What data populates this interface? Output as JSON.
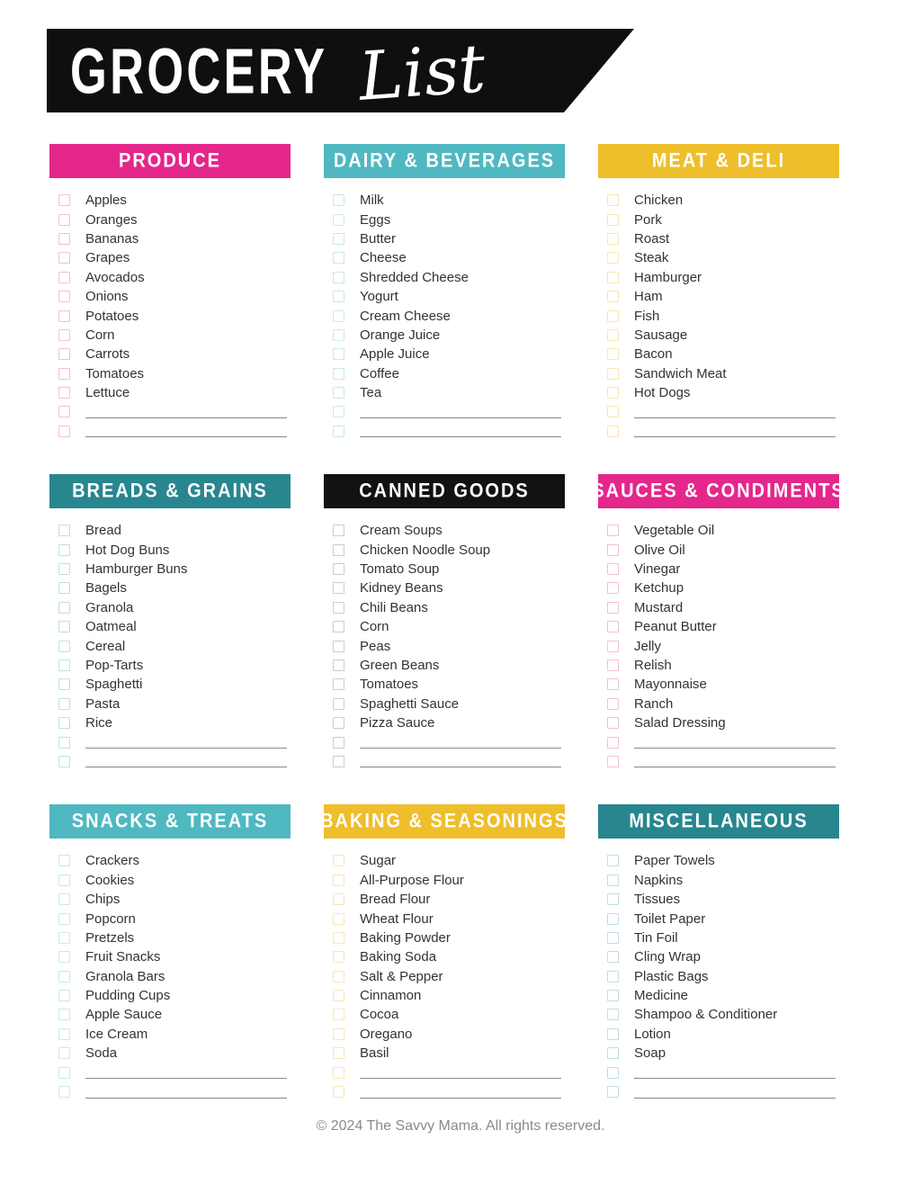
{
  "header": {
    "title_main": "GROCERY",
    "title_script": "List"
  },
  "footer": {
    "text": "© 2024 The Savvy Mama. All rights reserved."
  },
  "themes": {
    "pink": {
      "header_bg": "#E5268B",
      "header_text": "#FFFFFF",
      "checkbox_border": "#F5BEDC"
    },
    "teal": {
      "header_bg": "#4FB8C1",
      "header_text": "#FFFFFF",
      "checkbox_border": "#C9E9EC"
    },
    "yellow": {
      "header_bg": "#EEBE2B",
      "header_text": "#FFFFFF",
      "checkbox_border": "#F8E7B4"
    },
    "dark-teal": {
      "header_bg": "#28868F",
      "header_text": "#FFFFFF",
      "checkbox_border": "#BFE0E3"
    },
    "black": {
      "header_bg": "#121212",
      "header_text": "#FFFFFF",
      "checkbox_border": "#CCCCCC"
    }
  },
  "banner_bg": "#0F0F0F",
  "sections": [
    {
      "title": "PRODUCE",
      "theme": "pink",
      "items": [
        "Apples",
        "Oranges",
        "Bananas",
        "Grapes",
        "Avocados",
        "Onions",
        "Potatoes",
        "Corn",
        "Carrots",
        "Tomatoes",
        "Lettuce"
      ],
      "blank_count": 2
    },
    {
      "title": "DAIRY & BEVERAGES",
      "theme": "teal",
      "items": [
        "Milk",
        "Eggs",
        "Butter",
        "Cheese",
        "Shredded Cheese",
        "Yogurt",
        "Cream Cheese",
        "Orange Juice",
        "Apple Juice",
        "Coffee",
        "Tea"
      ],
      "blank_count": 2
    },
    {
      "title": "MEAT & DELI",
      "theme": "yellow",
      "items": [
        "Chicken",
        "Pork",
        "Roast",
        "Steak",
        "Hamburger",
        "Ham",
        "Fish",
        "Sausage",
        "Bacon",
        "Sandwich Meat",
        "Hot Dogs"
      ],
      "blank_count": 2
    },
    {
      "title": "BREADS & GRAINS",
      "theme": "dark-teal",
      "items": [
        "Bread",
        "Hot Dog Buns",
        "Hamburger Buns",
        "Bagels",
        "Granola",
        "Oatmeal",
        "Cereal",
        "Pop-Tarts",
        "Spaghetti",
        "Pasta",
        "Rice"
      ],
      "blank_count": 2
    },
    {
      "title": "CANNED GOODS",
      "theme": "black",
      "items": [
        "Cream Soups",
        "Chicken Noodle Soup",
        "Tomato Soup",
        "Kidney Beans",
        "Chili Beans",
        "Corn",
        "Peas",
        "Green Beans",
        "Tomatoes",
        "Spaghetti Sauce",
        "Pizza Sauce"
      ],
      "blank_count": 2
    },
    {
      "title": "SAUCES & CONDIMENTS",
      "theme": "pink",
      "items": [
        "Vegetable Oil",
        "Olive Oil",
        "Vinegar",
        "Ketchup",
        "Mustard",
        "Peanut Butter",
        "Jelly",
        "Relish",
        "Mayonnaise",
        "Ranch",
        "Salad Dressing"
      ],
      "blank_count": 2
    },
    {
      "title": "SNACKS & TREATS",
      "theme": "teal",
      "items": [
        "Crackers",
        "Cookies",
        "Chips",
        "Popcorn",
        "Pretzels",
        "Fruit Snacks",
        "Granola Bars",
        "Pudding Cups",
        "Apple Sauce",
        "Ice Cream",
        "Soda"
      ],
      "blank_count": 2
    },
    {
      "title": "BAKING & SEASONINGS",
      "theme": "yellow",
      "items": [
        "Sugar",
        "All-Purpose Flour",
        "Bread Flour",
        "Wheat Flour",
        "Baking Powder",
        "Baking Soda",
        "Salt & Pepper",
        "Cinnamon",
        "Cocoa",
        "Oregano",
        "Basil"
      ],
      "blank_count": 2
    },
    {
      "title": "MISCELLANEOUS",
      "theme": "dark-teal",
      "items": [
        "Paper Towels",
        "Napkins",
        "Tissues",
        "Toilet Paper",
        "Tin Foil",
        "Cling Wrap",
        "Plastic Bags",
        "Medicine",
        "Shampoo & Conditioner",
        "Lotion",
        "Soap"
      ],
      "blank_count": 2
    }
  ]
}
